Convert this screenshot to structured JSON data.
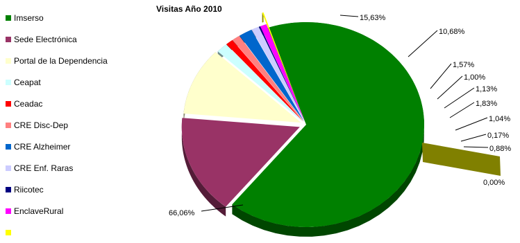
{
  "chart_data": {
    "type": "pie",
    "title": "Visitas Año 2010",
    "slices": [
      {
        "name": "Imserso",
        "value": 66.06,
        "label": "66,06%",
        "color": "#008000"
      },
      {
        "name": "Sede Electrónica",
        "value": 15.63,
        "label": "15,63%",
        "color": "#993366"
      },
      {
        "name": "Portal de la Dependencia",
        "value": 10.68,
        "label": "10,68%",
        "color": "#ffffcc"
      },
      {
        "name": "Ceapat",
        "value": 1.57,
        "label": "1,57%",
        "color": "#ccffff"
      },
      {
        "name": "Ceadac",
        "value": 1.0,
        "label": "1,00%",
        "color": "#ff0000"
      },
      {
        "name": "CRE Disc-Dep",
        "value": 1.13,
        "label": "1,13%",
        "color": "#ff8080"
      },
      {
        "name": "CRE Alzheimer",
        "value": 1.83,
        "label": "1,83%",
        "color": "#0066cc"
      },
      {
        "name": "CRE Enf. Raras",
        "value": 1.04,
        "label": "1,04%",
        "color": "#ccccff"
      },
      {
        "name": "Riicotec",
        "value": 0.17,
        "label": "0,17%",
        "color": "#000080"
      },
      {
        "name": "EnclaveRural",
        "value": 0.88,
        "label": "0,88%",
        "color": "#ff00ff"
      },
      {
        "name": "",
        "value": 0.0,
        "label": "0,00%",
        "color": "#ffff00"
      }
    ]
  }
}
